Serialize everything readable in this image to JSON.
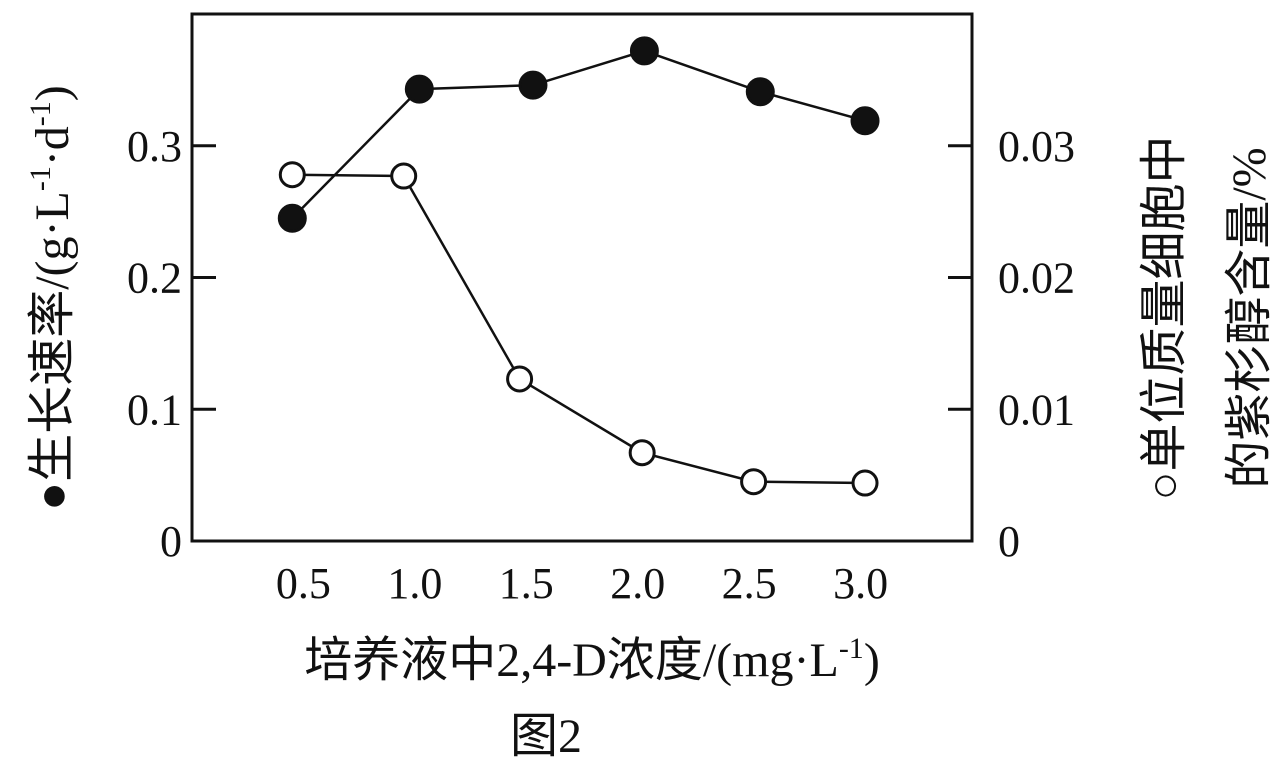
{
  "chart_data": {
    "type": "line",
    "x": [
      0.5,
      1.0,
      1.5,
      2.0,
      2.5,
      3.0
    ],
    "x_tick_labels": [
      "0.5",
      "1.0",
      "1.5",
      "2.0",
      "2.5",
      "3.0"
    ],
    "xlim": [
      0,
      3.5
    ],
    "xlabel_main": "培养液中2,4-D浓度/(mg·L",
    "xlabel_sup": "-1",
    "xlabel_end": ")",
    "y_left": {
      "label_main": "生长速率/(g·L",
      "label_sup1": "-1",
      "label_mid": "·d",
      "label_sup2": "-1",
      "label_end": ")",
      "legend_marker": "●",
      "ylim": [
        0,
        0.4
      ],
      "ticks": [
        0,
        0.1,
        0.2,
        0.3
      ],
      "tick_labels": [
        "0",
        "0.1",
        "0.2",
        "0.3"
      ]
    },
    "y_right": {
      "label_line1": "单位质量细胞中",
      "label_line2": "的紫杉醇含量/%",
      "legend_marker": "○",
      "ylim": [
        0,
        0.04
      ],
      "ticks": [
        0,
        0.01,
        0.02,
        0.03
      ],
      "tick_labels": [
        "0",
        "0.01",
        "0.02",
        "0.03"
      ]
    },
    "series": [
      {
        "axis": "left",
        "marker": "filled-circle",
        "x": [
          0.45,
          1.02,
          1.53,
          2.03,
          2.55,
          3.02
        ],
        "values": [
          0.245,
          0.343,
          0.346,
          0.372,
          0.341,
          0.319
        ]
      },
      {
        "axis": "right",
        "marker": "open-circle",
        "x": [
          0.45,
          0.95,
          1.47,
          2.02,
          2.52,
          3.02
        ],
        "values": [
          0.0278,
          0.0277,
          0.0123,
          0.0067,
          0.0045,
          0.0044
        ]
      }
    ],
    "caption": "图2"
  }
}
